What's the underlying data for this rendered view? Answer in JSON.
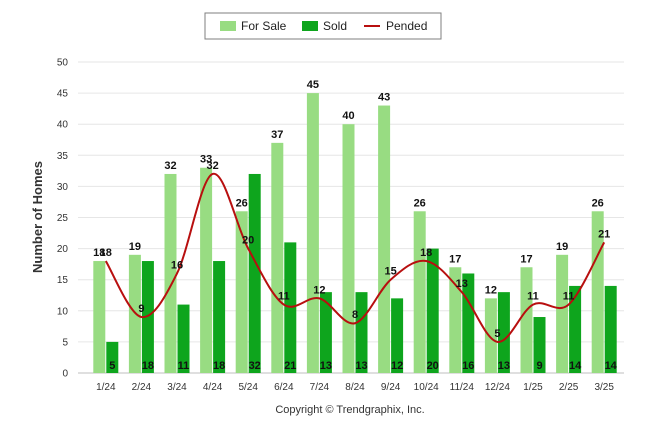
{
  "chart_data": {
    "type": "bar",
    "title": "",
    "xlabel": "",
    "ylabel": "Number of Homes",
    "ylim": [
      0,
      50
    ],
    "yticks": [
      0,
      5,
      10,
      15,
      20,
      25,
      30,
      35,
      40,
      45,
      50
    ],
    "grid": true,
    "legend_position": "top-center",
    "categories": [
      "1/24",
      "2/24",
      "3/24",
      "4/24",
      "5/24",
      "6/24",
      "7/24",
      "8/24",
      "9/24",
      "10/24",
      "11/24",
      "12/24",
      "1/25",
      "2/25",
      "3/25"
    ],
    "series": [
      {
        "name": "For Sale",
        "type": "bar",
        "color": "#98dc82",
        "values": [
          18,
          19,
          32,
          33,
          26,
          37,
          45,
          40,
          43,
          26,
          17,
          12,
          17,
          19,
          26
        ]
      },
      {
        "name": "Sold",
        "type": "bar",
        "color": "#0ea51d",
        "values": [
          5,
          18,
          11,
          18,
          32,
          21,
          13,
          13,
          12,
          20,
          16,
          13,
          9,
          14,
          14
        ]
      },
      {
        "name": "Pended",
        "type": "line",
        "color": "#b80f0f",
        "values": [
          18,
          9,
          16,
          32,
          20,
          11,
          12,
          8,
          15,
          18,
          13,
          5,
          11,
          11,
          21
        ]
      }
    ]
  },
  "footer": {
    "copyright": "Copyright © Trendgraphix, Inc."
  }
}
